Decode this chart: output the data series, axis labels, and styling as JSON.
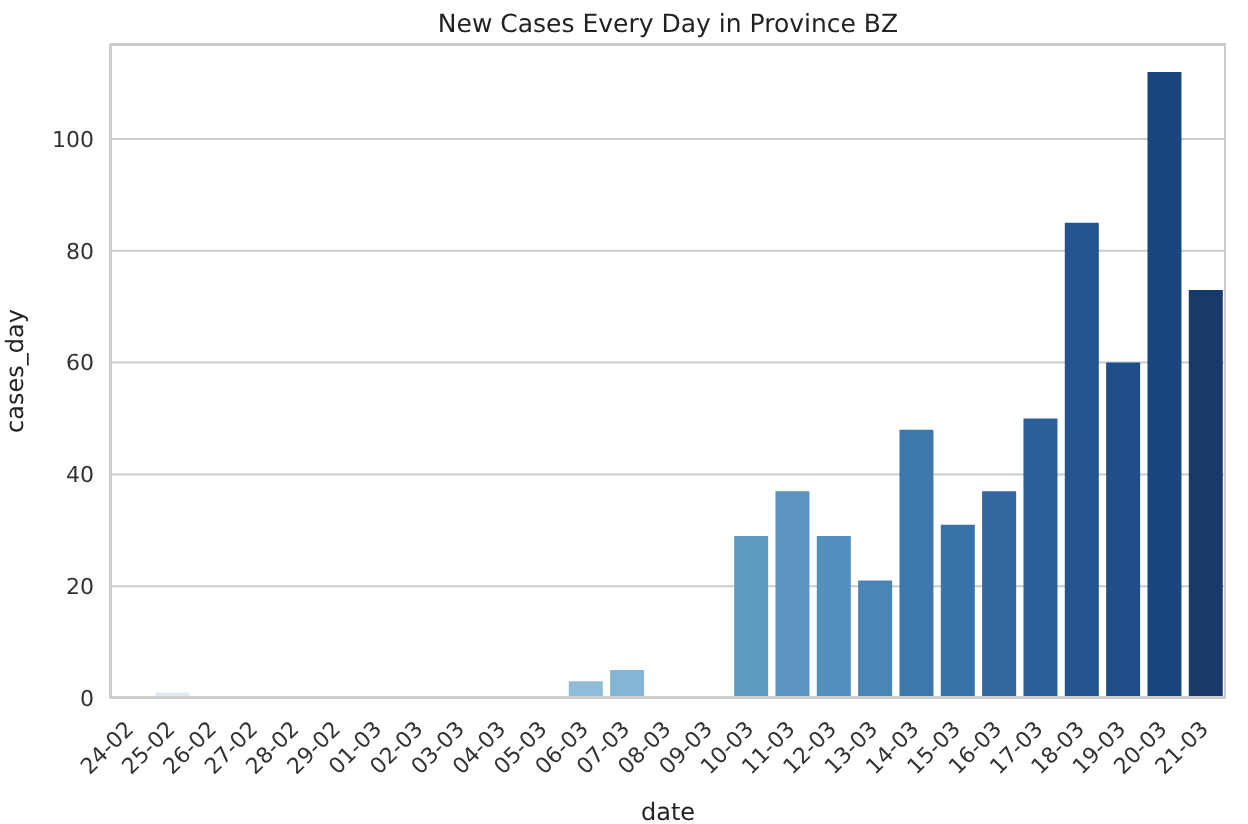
{
  "chart_data": {
    "type": "bar",
    "title": "New Cases Every Day in Province BZ",
    "xlabel": "date",
    "ylabel": "cases_day",
    "categories": [
      "24-02",
      "25-02",
      "26-02",
      "27-02",
      "28-02",
      "29-02",
      "01-03",
      "02-03",
      "03-03",
      "04-03",
      "05-03",
      "06-03",
      "07-03",
      "08-03",
      "09-03",
      "10-03",
      "11-03",
      "12-03",
      "13-03",
      "14-03",
      "15-03",
      "16-03",
      "17-03",
      "18-03",
      "19-03",
      "20-03",
      "21-03"
    ],
    "values": [
      0,
      1,
      0,
      0,
      0,
      0,
      0,
      0,
      0,
      0,
      0,
      3,
      5,
      0,
      0,
      29,
      37,
      29,
      21,
      48,
      31,
      37,
      50,
      85,
      60,
      112,
      73
    ],
    "colors": [
      "#e8eff6",
      "#dde9f3",
      "#d3e3f0",
      "#c9dded",
      "#bfd6ea",
      "#b5d0e7",
      "#abcae4",
      "#a1c4e1",
      "#98bfdf",
      "#93bddc",
      "#90bcdb",
      "#8fbcd9",
      "#84b5d6",
      "#7aabd0",
      "#6fa3ca",
      "#5e9bc3",
      "#5a94bf",
      "#5390bd",
      "#4a85b5",
      "#3d78aa",
      "#3873a8",
      "#31679f",
      "#2a5f99",
      "#22548f",
      "#1f4e8a",
      "#1b4580",
      "#183a6a"
    ],
    "ylim": [
      0,
      117
    ],
    "yticks": [
      0,
      20,
      40,
      60,
      80,
      100
    ],
    "grid": "y"
  }
}
